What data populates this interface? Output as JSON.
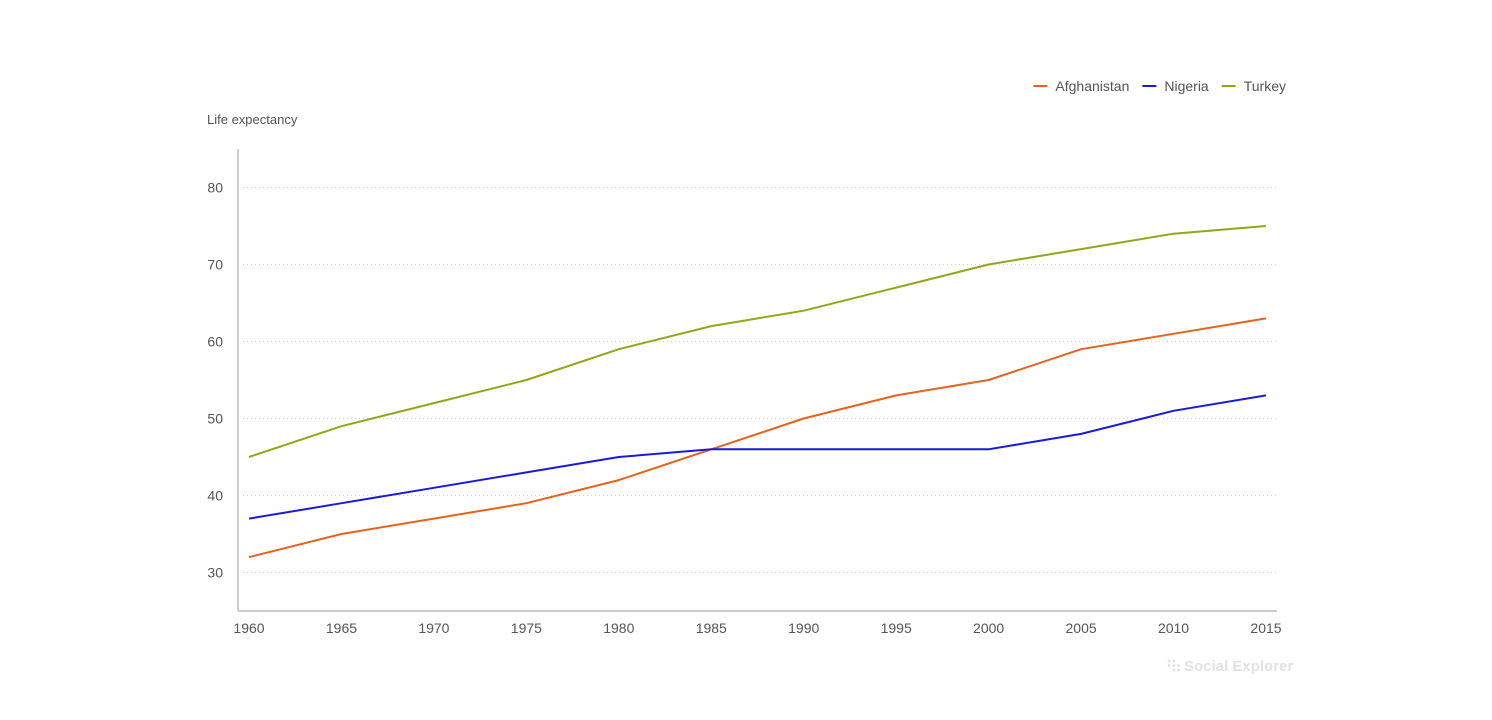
{
  "chart_data": {
    "type": "line",
    "ylabel": "Life expectancy",
    "xlabel": "",
    "x": [
      1960,
      1965,
      1970,
      1975,
      1980,
      1985,
      1990,
      1995,
      2000,
      2005,
      2010,
      2015
    ],
    "xlim": [
      1960,
      2015
    ],
    "ylim": [
      25,
      85
    ],
    "y_ticks": [
      30,
      40,
      50,
      60,
      70,
      80
    ],
    "grid": "horizontal dotted",
    "legend_position": "top-right",
    "series": [
      {
        "name": "Afghanistan",
        "color": "#e5621f",
        "values": [
          32,
          35,
          37,
          39,
          42,
          46,
          50,
          53,
          55,
          59,
          61,
          63
        ]
      },
      {
        "name": "Nigeria",
        "color": "#1a1adb",
        "values": [
          37,
          39,
          41,
          43,
          45,
          46,
          46,
          46,
          46,
          48,
          51,
          53
        ]
      },
      {
        "name": "Turkey",
        "color": "#94a51c",
        "values": [
          45,
          49,
          52,
          55,
          59,
          62,
          64,
          67,
          70,
          72,
          74,
          75
        ]
      }
    ]
  },
  "watermark": {
    "text": "Social Explorer",
    "icon": "dots-logo-icon"
  }
}
